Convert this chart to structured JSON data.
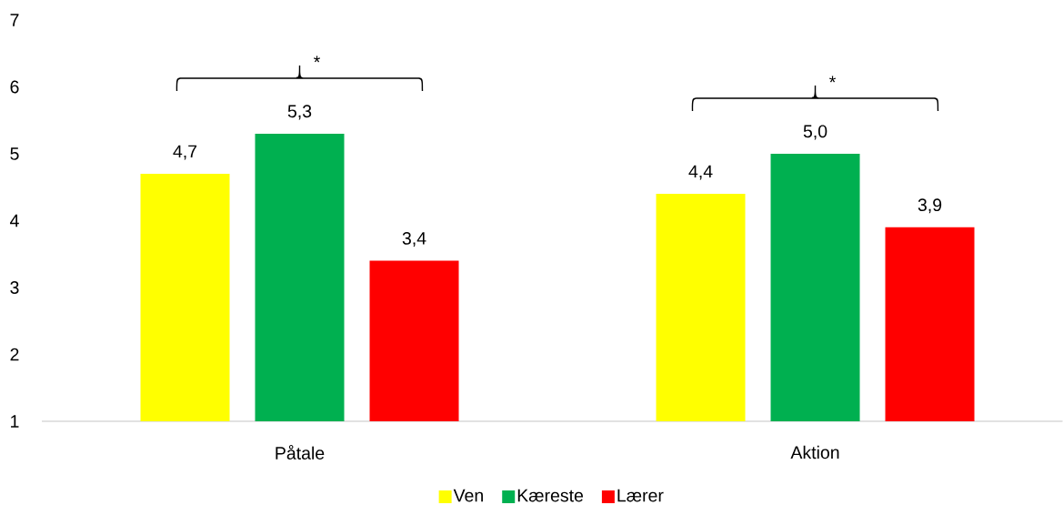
{
  "chart_data": {
    "type": "bar",
    "categories": [
      "Påtale",
      "Aktion"
    ],
    "series": [
      {
        "name": "Ven",
        "color": "#ffff00",
        "values": [
          4.7,
          4.4
        ],
        "value_labels": [
          "4,7",
          "4,4"
        ]
      },
      {
        "name": "Kæreste",
        "color": "#00b050",
        "values": [
          5.3,
          5.0
        ],
        "value_labels": [
          "5,3",
          "5,0"
        ]
      },
      {
        "name": "Lærer",
        "color": "#ff0000",
        "values": [
          3.4,
          3.9
        ],
        "value_labels": [
          "3,4",
          "3,9"
        ]
      }
    ],
    "ylim": [
      1,
      7
    ],
    "yticks": [
      1,
      2,
      3,
      4,
      5,
      6,
      7
    ],
    "legend": "bottom",
    "annotations": [
      "*",
      "*"
    ]
  }
}
